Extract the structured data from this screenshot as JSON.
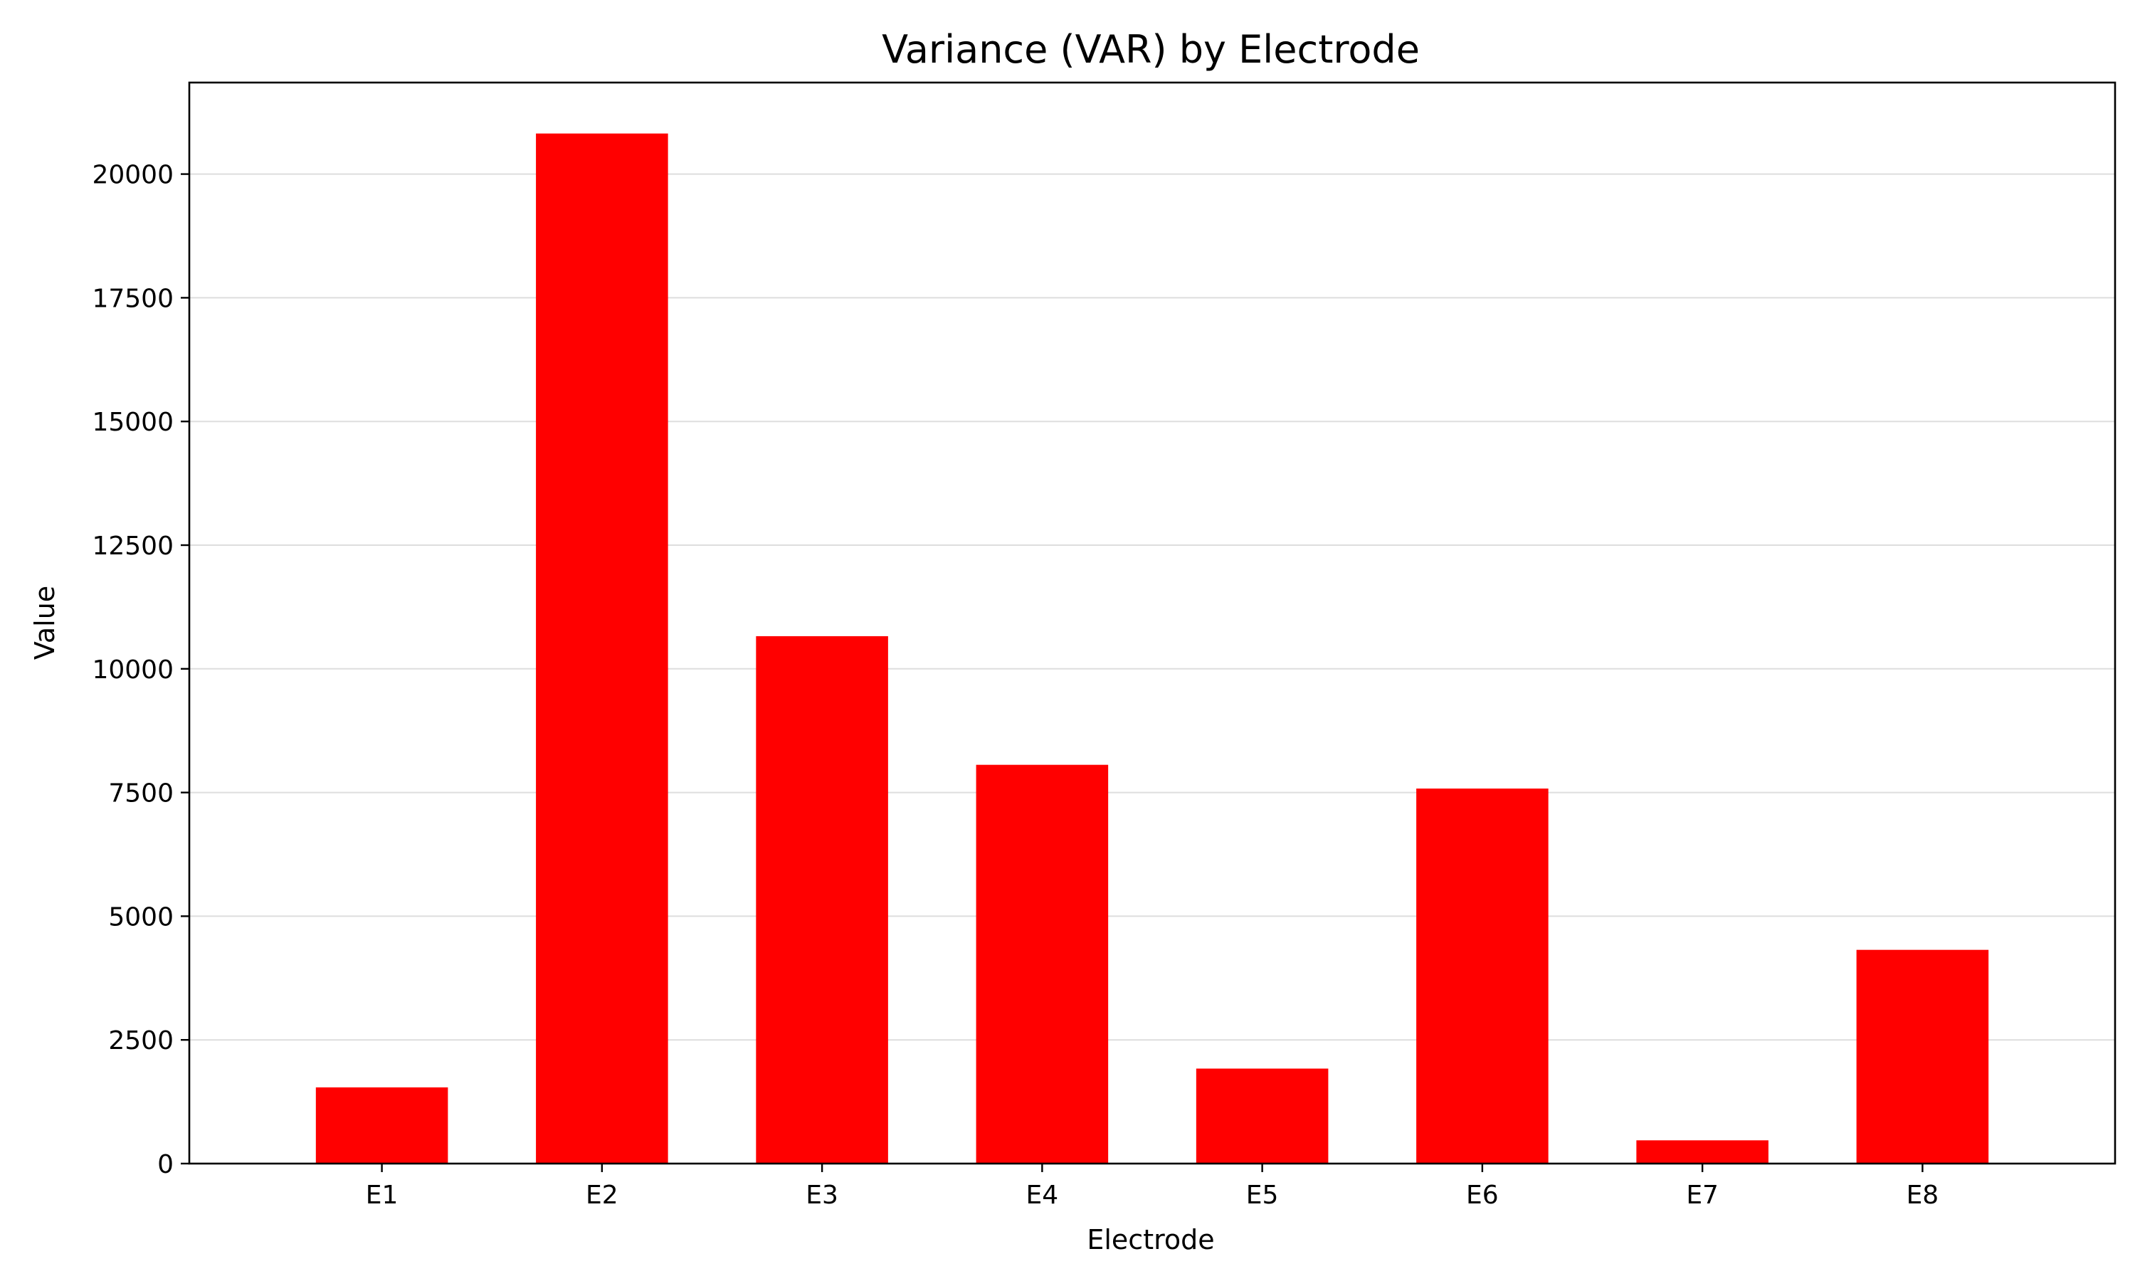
{
  "chart_data": {
    "type": "bar",
    "title": "Variance (VAR) by Electrode",
    "xlabel": "Electrode",
    "ylabel": "Value",
    "categories": [
      "E1",
      "E2",
      "E3",
      "E4",
      "E5",
      "E6",
      "E7",
      "E8"
    ],
    "values": [
      1540,
      20820,
      10660,
      8060,
      1920,
      7580,
      470,
      4320
    ],
    "ylim": [
      0,
      21850
    ],
    "yticks": [
      0,
      2500,
      5000,
      7500,
      10000,
      12500,
      15000,
      17500,
      20000
    ],
    "grid": "horizontal",
    "legend": "none",
    "colors": {
      "bar": "#ff0000",
      "grid": "#dedede",
      "axis": "#000000"
    }
  }
}
